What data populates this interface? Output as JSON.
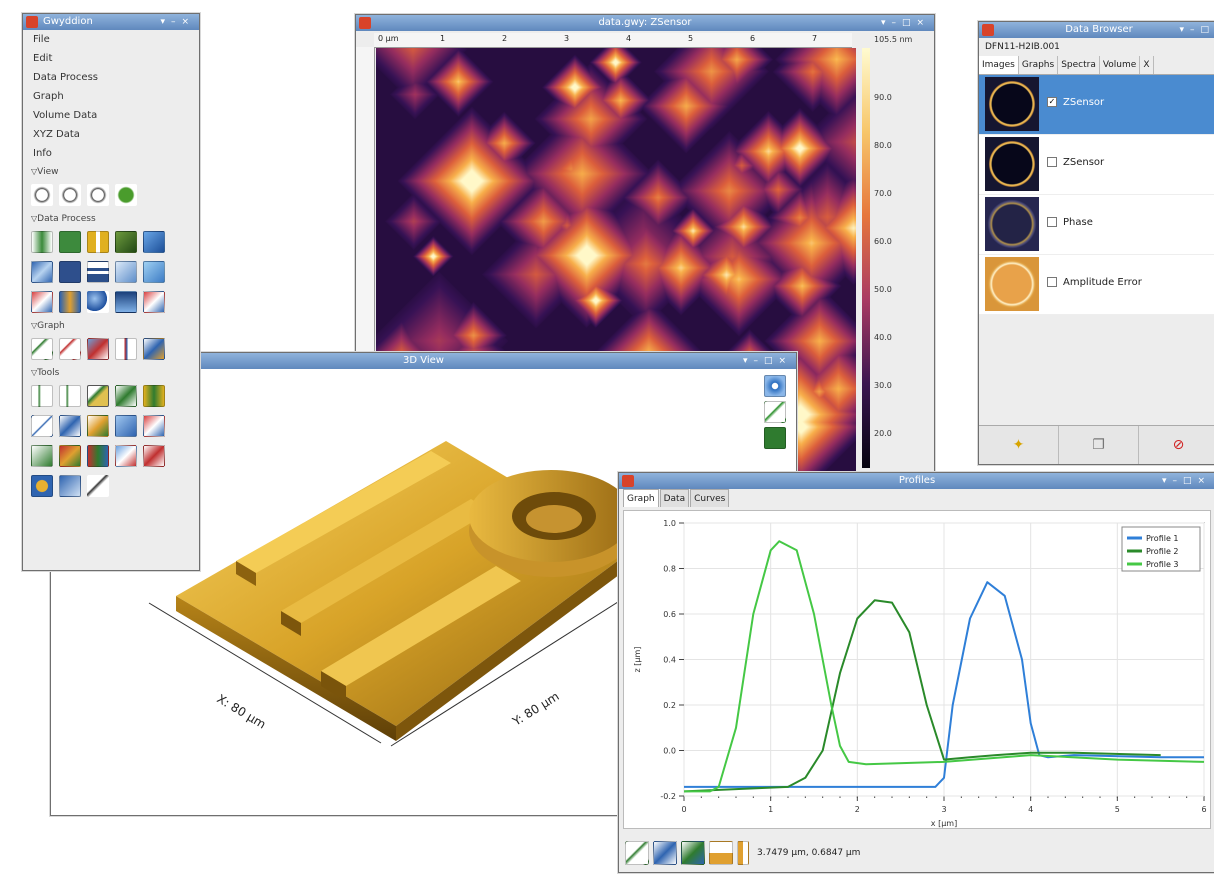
{
  "toolbox": {
    "title": "Gwyddion",
    "menu": [
      "File",
      "Edit",
      "Data Process",
      "Graph",
      "Volume Data",
      "XYZ Data",
      "Info"
    ],
    "sections": {
      "view": "View",
      "data_process": "Data Process",
      "graph": "Graph",
      "tools": "Tools"
    }
  },
  "data_window": {
    "title": "data.gwy: ZSensor",
    "ruler_unit": "0 µm",
    "ruler_ticks": [
      "1",
      "2",
      "3",
      "4",
      "5",
      "6",
      "7"
    ],
    "colorbar_max": "105.5 nm",
    "colorbar_ticks": [
      "90.0",
      "80.0",
      "70.0",
      "60.0",
      "50.0",
      "40.0",
      "30.0",
      "20.0"
    ]
  },
  "view3d": {
    "title": "3D View",
    "x_label": "X: 80 µm",
    "y_label": "Y: 80 µm"
  },
  "data_browser": {
    "title": "Data Browser",
    "file_name": "DFN11-H2IB.001",
    "tabs": [
      "Images",
      "Graphs",
      "Spectra",
      "Volume",
      "X"
    ],
    "items": [
      {
        "label": "ZSensor",
        "checked": true
      },
      {
        "label": "ZSensor",
        "checked": false
      },
      {
        "label": "Phase",
        "checked": false
      },
      {
        "label": "Amplitude Error",
        "checked": false
      }
    ]
  },
  "graph": {
    "title": "Profiles",
    "tabs": [
      "Graph",
      "Data",
      "Curves"
    ],
    "status": "3.7479 µm, 0.6847 µm"
  },
  "chart_data": {
    "type": "line",
    "title": "",
    "xlabel": "x [µm]",
    "ylabel": "z [µm]",
    "xlim": [
      0,
      6
    ],
    "ylim": [
      -0.2,
      1.0
    ],
    "xticks": [
      "0",
      "1",
      "2",
      "3",
      "4",
      "5",
      "6"
    ],
    "yticks": [
      "-0.2",
      "0.0",
      "0.2",
      "0.4",
      "0.6",
      "0.8",
      "1.0"
    ],
    "legend": "top-right",
    "series": [
      {
        "name": "Profile 1",
        "color": "#2f7fd8",
        "x": [
          0,
          2.9,
          3.0,
          3.1,
          3.3,
          3.5,
          3.7,
          3.9,
          4.0,
          4.1,
          4.2,
          4.5,
          5.5,
          6.0
        ],
        "y": [
          -0.16,
          -0.16,
          -0.12,
          0.2,
          0.58,
          0.74,
          0.68,
          0.4,
          0.12,
          -0.02,
          -0.03,
          -0.02,
          -0.03,
          -0.03
        ]
      },
      {
        "name": "Profile 2",
        "color": "#2a8a2a",
        "x": [
          0,
          1.2,
          1.4,
          1.6,
          1.8,
          2.0,
          2.2,
          2.4,
          2.6,
          2.8,
          3.0,
          3.3,
          3.6,
          4.0,
          4.5,
          5.5
        ],
        "y": [
          -0.18,
          -0.16,
          -0.12,
          0.0,
          0.34,
          0.58,
          0.66,
          0.65,
          0.52,
          0.2,
          -0.04,
          -0.03,
          -0.02,
          -0.01,
          -0.01,
          -0.02
        ]
      },
      {
        "name": "Profile 3",
        "color": "#45c845",
        "x": [
          0,
          0.3,
          0.4,
          0.6,
          0.8,
          1.0,
          1.1,
          1.3,
          1.5,
          1.7,
          1.8,
          1.9,
          2.1,
          3.0,
          4.0,
          5.0,
          6.0
        ],
        "y": [
          -0.18,
          -0.18,
          -0.16,
          0.1,
          0.6,
          0.88,
          0.92,
          0.88,
          0.6,
          0.2,
          0.02,
          -0.05,
          -0.06,
          -0.05,
          -0.02,
          -0.04,
          -0.05
        ]
      }
    ]
  }
}
